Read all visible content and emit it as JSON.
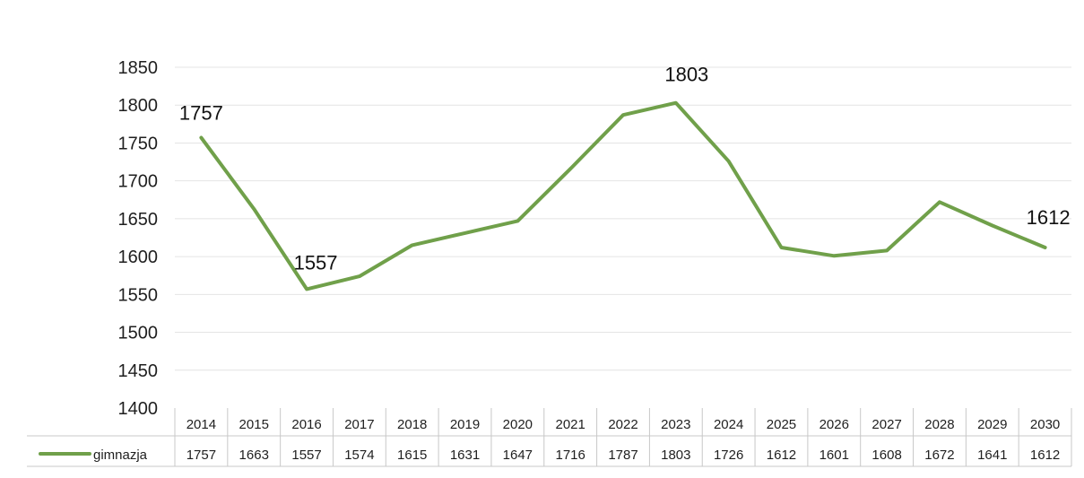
{
  "chart_data": {
    "type": "line",
    "categories": [
      "2014",
      "2015",
      "2016",
      "2017",
      "2018",
      "2019",
      "2020",
      "2021",
      "2022",
      "2023",
      "2024",
      "2025",
      "2026",
      "2027",
      "2028",
      "2029",
      "2030"
    ],
    "series": [
      {
        "name": "gimnazja",
        "values": [
          1757,
          1663,
          1557,
          1574,
          1615,
          1631,
          1647,
          1716,
          1787,
          1803,
          1726,
          1612,
          1601,
          1608,
          1672,
          1641,
          1612
        ],
        "color": "#70a04a"
      }
    ],
    "point_labels": [
      {
        "index": 0,
        "text": "1757"
      },
      {
        "index": 2,
        "text": "1557"
      },
      {
        "index": 9,
        "text": "1803"
      },
      {
        "index": 16,
        "text": "1612"
      }
    ],
    "yticks": [
      "1400",
      "1450",
      "1500",
      "1550",
      "1600",
      "1650",
      "1700",
      "1750",
      "1800",
      "1850"
    ],
    "ylim": [
      1400,
      1850
    ],
    "grid": true,
    "data_table": true,
    "title": "",
    "xlabel": "",
    "ylabel": ""
  }
}
